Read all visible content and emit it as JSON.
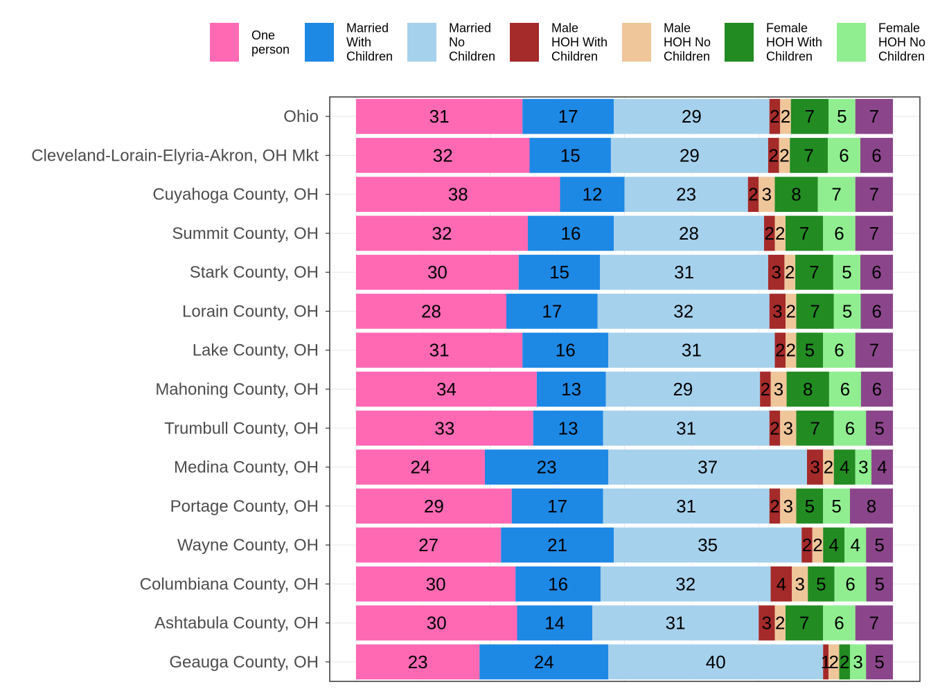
{
  "chart_data": {
    "type": "bar",
    "orientation": "horizontal",
    "stacked": "percent",
    "title": "",
    "xlabel": "",
    "ylabel": "",
    "xlim": [
      0,
      100
    ],
    "grid": true,
    "legend_position": "top",
    "categories": [
      "Ohio",
      "Cleveland-Lorain-Elyria-Akron, OH Mkt",
      "Cuyahoga County, OH",
      "Summit County, OH",
      "Stark County, OH",
      "Lorain County, OH",
      "Lake County, OH",
      "Mahoning County, OH",
      "Trumbull County, OH",
      "Medina County, OH",
      "Portage County, OH",
      "Wayne County, OH",
      "Columbiana County, OH",
      "Ashtabula County, OH",
      "Geauga County, OH"
    ],
    "series": [
      {
        "name": "One person",
        "legend_lines": [
          "One",
          "person"
        ],
        "color": "#FF69B4",
        "values": [
          31,
          32,
          38,
          32,
          30,
          28,
          31,
          34,
          33,
          24,
          29,
          27,
          30,
          30,
          23
        ]
      },
      {
        "name": "Married With Children",
        "legend_lines": [
          "Married",
          "With",
          "Children"
        ],
        "color": "#1E88E5",
        "values": [
          17,
          15,
          12,
          16,
          15,
          17,
          16,
          13,
          13,
          23,
          17,
          21,
          16,
          14,
          24
        ]
      },
      {
        "name": "Married No Children",
        "legend_lines": [
          "Married",
          "No",
          "Children"
        ],
        "color": "#A6D1ED",
        "values": [
          29,
          29,
          23,
          28,
          31,
          32,
          31,
          29,
          31,
          37,
          31,
          35,
          32,
          31,
          40
        ]
      },
      {
        "name": "Male HOH With Children",
        "legend_lines": [
          "Male",
          "HOH With",
          "Children"
        ],
        "color": "#A52A2A",
        "values": [
          2,
          2,
          2,
          2,
          3,
          3,
          2,
          2,
          2,
          3,
          2,
          2,
          4,
          3,
          1
        ]
      },
      {
        "name": "Male HOH No Children",
        "legend_lines": [
          "Male",
          "HOH No",
          "Children"
        ],
        "color": "#EFC69A",
        "values": [
          2,
          2,
          3,
          2,
          2,
          2,
          2,
          3,
          3,
          2,
          3,
          2,
          3,
          2,
          2
        ]
      },
      {
        "name": "Female HOH With Children",
        "legend_lines": [
          "Female",
          "HOH With",
          "Children"
        ],
        "color": "#228B22",
        "values": [
          7,
          7,
          8,
          7,
          7,
          7,
          5,
          8,
          7,
          4,
          5,
          4,
          5,
          7,
          2
        ]
      },
      {
        "name": "Female HOH No Children",
        "legend_lines": [
          "Female",
          "HOH No",
          "Children"
        ],
        "color": "#90EE90",
        "values": [
          5,
          6,
          7,
          6,
          5,
          5,
          6,
          6,
          6,
          3,
          5,
          4,
          6,
          6,
          3
        ]
      },
      {
        "name": "",
        "legend_lines": [],
        "color": "#8B468B",
        "values": [
          7,
          6,
          7,
          7,
          6,
          6,
          7,
          6,
          5,
          4,
          8,
          5,
          5,
          7,
          5
        ]
      }
    ]
  }
}
